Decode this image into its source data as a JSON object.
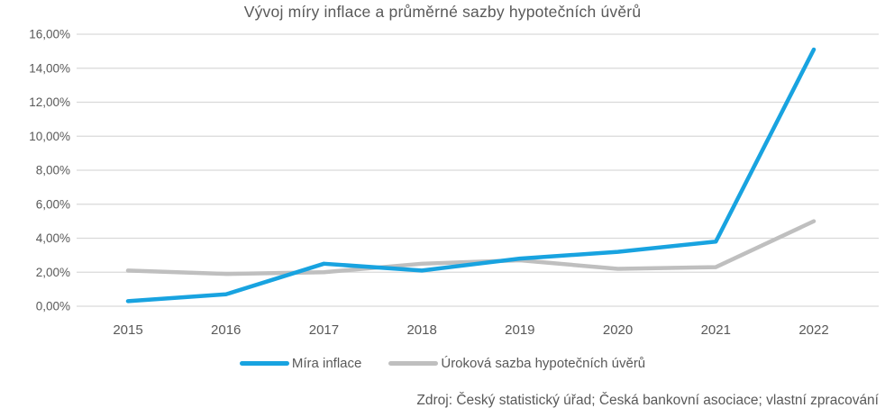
{
  "source": "Zdroj: Český statistický úřad; Česká bankovní asociace; vlastní zpracování",
  "colors": {
    "text": "#595959",
    "gridline": "#D9D9D9",
    "inflation_line": "#18A3E0",
    "mortgage_line": "#BFBFBF"
  },
  "chart_data": {
    "type": "line",
    "title": "Vývoj míry inflace a průměrné sazby hypotečních úvěrů",
    "categories": [
      "2015",
      "2016",
      "2017",
      "2018",
      "2019",
      "2020",
      "2021",
      "2022"
    ],
    "series": [
      {
        "name": "Míra inflace",
        "color": "#18A3E0",
        "values": [
          0.3,
          0.7,
          2.5,
          2.1,
          2.8,
          3.2,
          3.8,
          15.1
        ]
      },
      {
        "name": "Úroková sazba hypotečních úvěrů",
        "color": "#BFBFBF",
        "values": [
          2.1,
          1.9,
          2.0,
          2.5,
          2.7,
          2.2,
          2.3,
          5.0
        ]
      }
    ],
    "xlabel": "",
    "ylabel": "",
    "ylim": [
      0,
      16
    ],
    "y_tick_step": 2,
    "y_tick_labels": [
      "0,00%",
      "2,00%",
      "4,00%",
      "6,00%",
      "8,00%",
      "10,00%",
      "12,00%",
      "14,00%",
      "16,00%"
    ],
    "grid": true,
    "legend_position": "bottom"
  }
}
